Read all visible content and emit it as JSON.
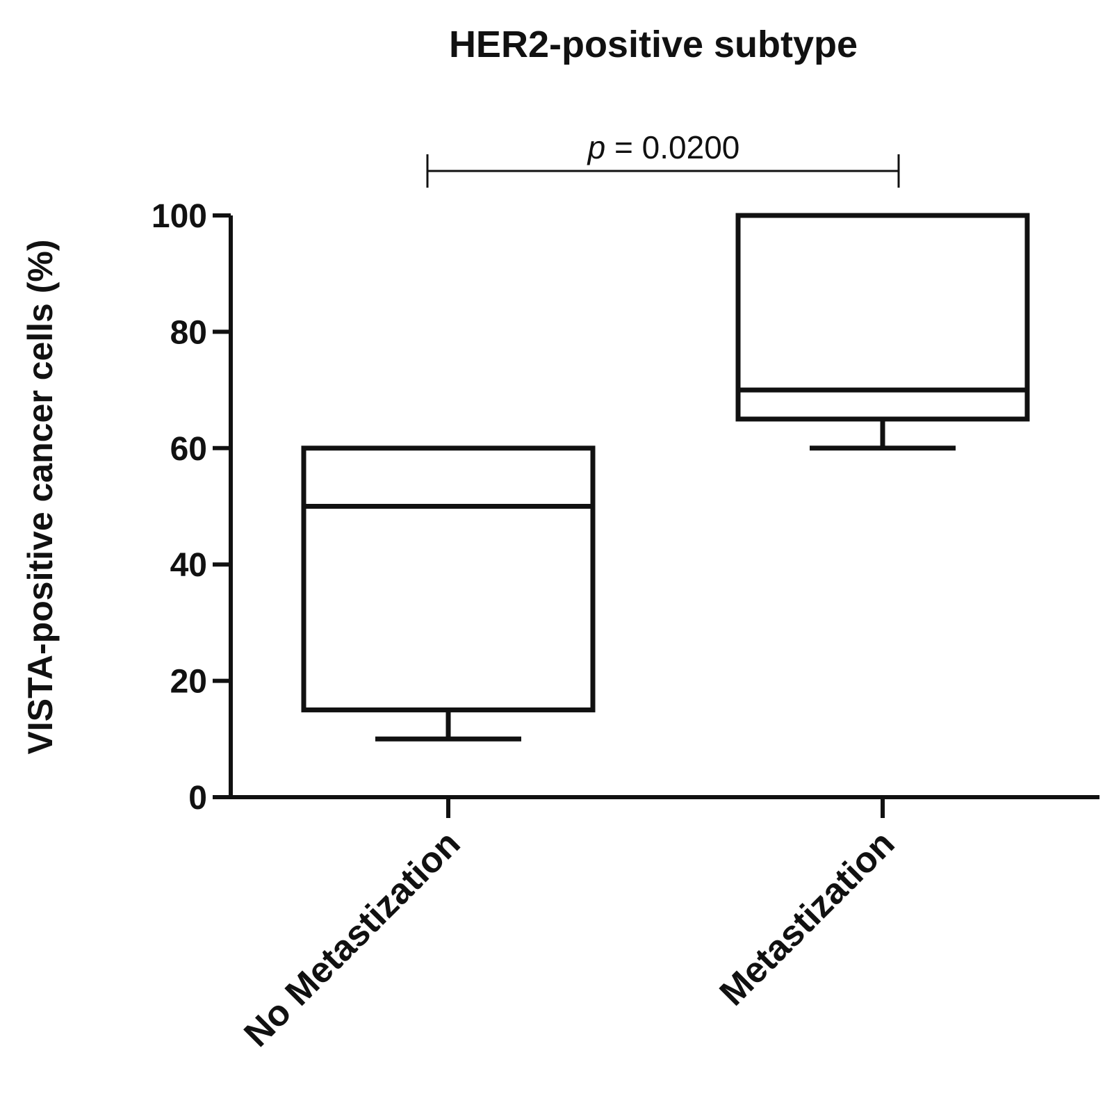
{
  "chart_data": {
    "type": "box",
    "title": "HER2-positive subtype",
    "xlabel": "",
    "ylabel": "VISTA-positive cancer cells (%)",
    "ylim": [
      0,
      100
    ],
    "yticks": [
      "0",
      "20",
      "40",
      "60",
      "80",
      "100"
    ],
    "categories": [
      "No Metastization",
      "Metastization"
    ],
    "boxes": [
      {
        "category": "No Metastization",
        "min": 10,
        "q1": 15,
        "median": 50,
        "q3": 60,
        "max": 60
      },
      {
        "category": "Metastization",
        "min": 60,
        "q1": 65,
        "median": 70,
        "q3": 100,
        "max": 100
      }
    ],
    "annotation": {
      "p_symbol": "p",
      "p_text": " = 0.0200",
      "between": [
        "No Metastization",
        "Metastization"
      ]
    },
    "colors": {
      "stroke": "#111111",
      "background": "#ffffff"
    }
  }
}
